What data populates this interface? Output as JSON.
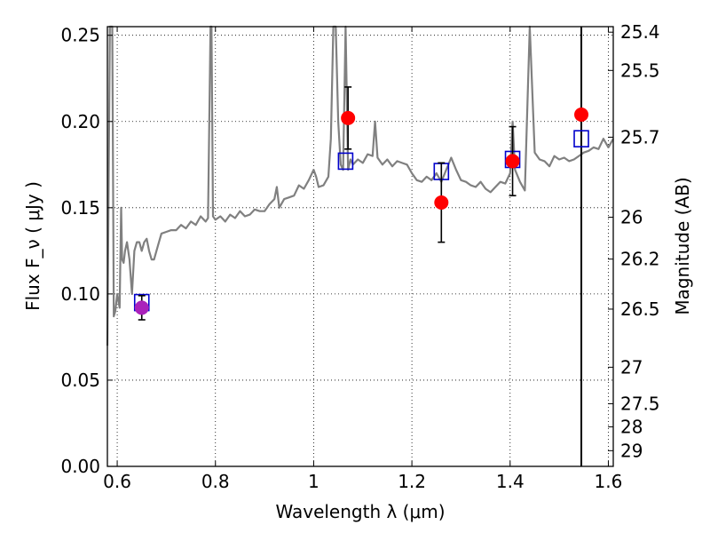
{
  "chart_data": {
    "type": "scatter",
    "xlabel": "Wavelength  λ (μm)",
    "ylabel": "Flux  F_ν  ( μJy )",
    "ylabel_right": "Magnitude (AB)",
    "xlim": [
      0.58,
      1.61
    ],
    "ylim": [
      0.0,
      0.255
    ],
    "grid": true,
    "x_ticks": [
      0.6,
      0.8,
      1.0,
      1.2,
      1.4,
      1.6
    ],
    "x_tick_labels": [
      "0.6",
      "0.8",
      "1",
      "1.2",
      "1.4",
      "1.6"
    ],
    "y_ticks": [
      0.0,
      0.05,
      0.1,
      0.15,
      0.2,
      0.25
    ],
    "y_tick_labels": [
      "0.00",
      "0.05",
      "0.10",
      "0.15",
      "0.20",
      "0.25"
    ],
    "right_ticks": [
      {
        "label": "25.4",
        "flux": 0.2518
      },
      {
        "label": "25.5",
        "flux": 0.2296
      },
      {
        "label": "25.7",
        "flux": 0.1909
      },
      {
        "label": "26",
        "flux": 0.1445
      },
      {
        "label": "26.2",
        "flux": 0.1202
      },
      {
        "label": "26.5",
        "flux": 0.0912
      },
      {
        "label": "27",
        "flux": 0.0575
      },
      {
        "label": "27.5",
        "flux": 0.0363
      },
      {
        "label": "28",
        "flux": 0.0229
      },
      {
        "label": "29",
        "flux": 0.0091
      }
    ],
    "colors": {
      "model": "#808080",
      "observed": "#ff0000",
      "observed_limit": "#aa22bb",
      "synthetic": "#0000cc",
      "errorbar": "#000000",
      "vline": "#000000"
    },
    "vertical_line_x": 1.545,
    "series": [
      {
        "kind": "model_spectrum",
        "x": [
          0.58,
          0.585,
          0.588,
          0.59,
          0.593,
          0.596,
          0.6,
          0.605,
          0.608,
          0.61,
          0.613,
          0.616,
          0.62,
          0.625,
          0.63,
          0.635,
          0.64,
          0.645,
          0.65,
          0.655,
          0.66,
          0.665,
          0.67,
          0.675,
          0.68,
          0.685,
          0.69,
          0.7,
          0.71,
          0.72,
          0.73,
          0.74,
          0.75,
          0.76,
          0.77,
          0.78,
          0.785,
          0.79,
          0.792,
          0.795,
          0.8,
          0.81,
          0.82,
          0.83,
          0.84,
          0.85,
          0.86,
          0.87,
          0.88,
          0.89,
          0.9,
          0.91,
          0.92,
          0.925,
          0.93,
          0.94,
          0.95,
          0.96,
          0.97,
          0.98,
          0.99,
          1.0,
          1.005,
          1.01,
          1.02,
          1.03,
          1.035,
          1.04,
          1.045,
          1.05,
          1.055,
          1.06,
          1.065,
          1.07,
          1.075,
          1.08,
          1.09,
          1.1,
          1.11,
          1.12,
          1.125,
          1.13,
          1.14,
          1.15,
          1.16,
          1.17,
          1.18,
          1.19,
          1.2,
          1.21,
          1.22,
          1.23,
          1.24,
          1.25,
          1.26,
          1.27,
          1.28,
          1.29,
          1.3,
          1.31,
          1.32,
          1.33,
          1.34,
          1.35,
          1.36,
          1.37,
          1.38,
          1.39,
          1.4,
          1.405,
          1.41,
          1.42,
          1.43,
          1.44,
          1.45,
          1.46,
          1.47,
          1.48,
          1.49,
          1.5,
          1.51,
          1.52,
          1.53,
          1.54,
          1.55,
          1.56,
          1.57,
          1.58,
          1.59,
          1.6,
          1.61
        ],
        "y": [
          0.07,
          0.255,
          0.255,
          0.255,
          0.087,
          0.09,
          0.1,
          0.092,
          0.15,
          0.12,
          0.118,
          0.125,
          0.13,
          0.12,
          0.1,
          0.125,
          0.13,
          0.13,
          0.125,
          0.13,
          0.132,
          0.125,
          0.12,
          0.12,
          0.125,
          0.13,
          0.135,
          0.136,
          0.137,
          0.137,
          0.14,
          0.138,
          0.142,
          0.14,
          0.145,
          0.142,
          0.144,
          0.255,
          0.255,
          0.145,
          0.143,
          0.145,
          0.142,
          0.146,
          0.144,
          0.148,
          0.145,
          0.146,
          0.149,
          0.148,
          0.148,
          0.152,
          0.155,
          0.162,
          0.15,
          0.155,
          0.156,
          0.157,
          0.163,
          0.161,
          0.166,
          0.172,
          0.168,
          0.162,
          0.163,
          0.168,
          0.19,
          0.255,
          0.255,
          0.2,
          0.175,
          0.172,
          0.255,
          0.172,
          0.178,
          0.175,
          0.178,
          0.176,
          0.181,
          0.18,
          0.2,
          0.179,
          0.175,
          0.178,
          0.174,
          0.177,
          0.176,
          0.175,
          0.17,
          0.166,
          0.165,
          0.168,
          0.166,
          0.17,
          0.165,
          0.172,
          0.179,
          0.172,
          0.166,
          0.165,
          0.163,
          0.162,
          0.165,
          0.161,
          0.159,
          0.162,
          0.165,
          0.164,
          0.17,
          0.2,
          0.172,
          0.165,
          0.16,
          0.255,
          0.182,
          0.178,
          0.177,
          0.174,
          0.18,
          0.178,
          0.179,
          0.177,
          0.178,
          0.18,
          0.182,
          0.183,
          0.185,
          0.184,
          0.19,
          0.185,
          0.19
        ]
      },
      {
        "kind": "synthetic_photometry",
        "marker": "square",
        "x": [
          0.65,
          1.065,
          1.26,
          1.405,
          1.545
        ],
        "y": [
          0.095,
          0.177,
          0.171,
          0.178,
          0.19
        ]
      },
      {
        "kind": "observed_photometry",
        "marker": "circle",
        "x": [
          0.65,
          1.07,
          1.26,
          1.405,
          1.545
        ],
        "y": [
          0.092,
          0.202,
          0.153,
          0.177,
          0.204
        ],
        "yerr": [
          0.007,
          0.018,
          0.023,
          0.02,
          null
        ],
        "color_keys": [
          "observed_limit",
          "observed",
          "observed",
          "observed",
          "observed"
        ]
      }
    ]
  }
}
